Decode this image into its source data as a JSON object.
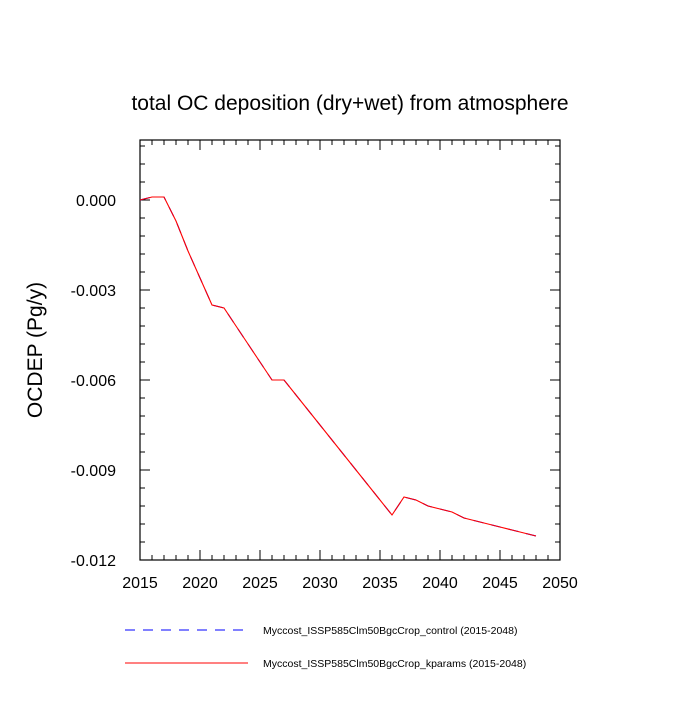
{
  "chart_data": {
    "type": "line",
    "title": "total OC deposition (dry+wet) from atmosphere",
    "xlabel": "",
    "ylabel": "OCDEP  (Pg/y)",
    "xlim": [
      2015,
      2050
    ],
    "ylim": [
      -0.012,
      0.002
    ],
    "x_ticks": [
      2015,
      2020,
      2025,
      2030,
      2035,
      2040,
      2045,
      2050
    ],
    "x_tick_labels": [
      "2015",
      "2020",
      "2025",
      "2030",
      "2035",
      "2040",
      "2045",
      "2050"
    ],
    "y_ticks": [
      0.0,
      -0.003,
      -0.006,
      -0.009,
      -0.012
    ],
    "y_tick_labels": [
      "0.000",
      "-0.003",
      "-0.006",
      "-0.009",
      "-0.012"
    ],
    "x_minor_step": 1,
    "y_minor_step": 0.0006,
    "grid": false,
    "legend_position": "bottom",
    "series": [
      {
        "name": "Myccost_ISSP585Clm50BgcCrop_control (2015-2048)",
        "color": "#0000ff",
        "dash": "dashed",
        "x": [
          2015,
          2016,
          2017,
          2018,
          2019,
          2020,
          2021,
          2022,
          2023,
          2024,
          2025,
          2026,
          2027,
          2028,
          2029,
          2030,
          2031,
          2032,
          2033,
          2034,
          2035,
          2036,
          2037,
          2038,
          2039,
          2040,
          2041,
          2042,
          2043,
          2044,
          2045,
          2046,
          2047,
          2048
        ],
        "values": [
          0.0,
          0.0001,
          0.0001,
          -0.0007,
          -0.0017,
          -0.0026,
          -0.0035,
          -0.0036,
          -0.0042,
          -0.0048,
          -0.0054,
          -0.006,
          -0.006,
          -0.0065,
          -0.007,
          -0.0075,
          -0.008,
          -0.0085,
          -0.009,
          -0.0095,
          -0.01,
          -0.0105,
          -0.0099,
          -0.01,
          -0.0102,
          -0.0103,
          -0.0104,
          -0.0106,
          -0.0107,
          -0.0108,
          -0.0109,
          -0.011,
          -0.0111,
          -0.0112
        ]
      },
      {
        "name": "Myccost_ISSP585Clm50BgcCrop_kparams (2015-2048)",
        "color": "#ff0000",
        "dash": "solid",
        "x": [
          2015,
          2016,
          2017,
          2018,
          2019,
          2020,
          2021,
          2022,
          2023,
          2024,
          2025,
          2026,
          2027,
          2028,
          2029,
          2030,
          2031,
          2032,
          2033,
          2034,
          2035,
          2036,
          2037,
          2038,
          2039,
          2040,
          2041,
          2042,
          2043,
          2044,
          2045,
          2046,
          2047,
          2048
        ],
        "values": [
          0.0,
          0.0001,
          0.0001,
          -0.0007,
          -0.0017,
          -0.0026,
          -0.0035,
          -0.0036,
          -0.0042,
          -0.0048,
          -0.0054,
          -0.006,
          -0.006,
          -0.0065,
          -0.007,
          -0.0075,
          -0.008,
          -0.0085,
          -0.009,
          -0.0095,
          -0.01,
          -0.0105,
          -0.0099,
          -0.01,
          -0.0102,
          -0.0103,
          -0.0104,
          -0.0106,
          -0.0107,
          -0.0108,
          -0.0109,
          -0.011,
          -0.0111,
          -0.0112
        ]
      }
    ]
  }
}
